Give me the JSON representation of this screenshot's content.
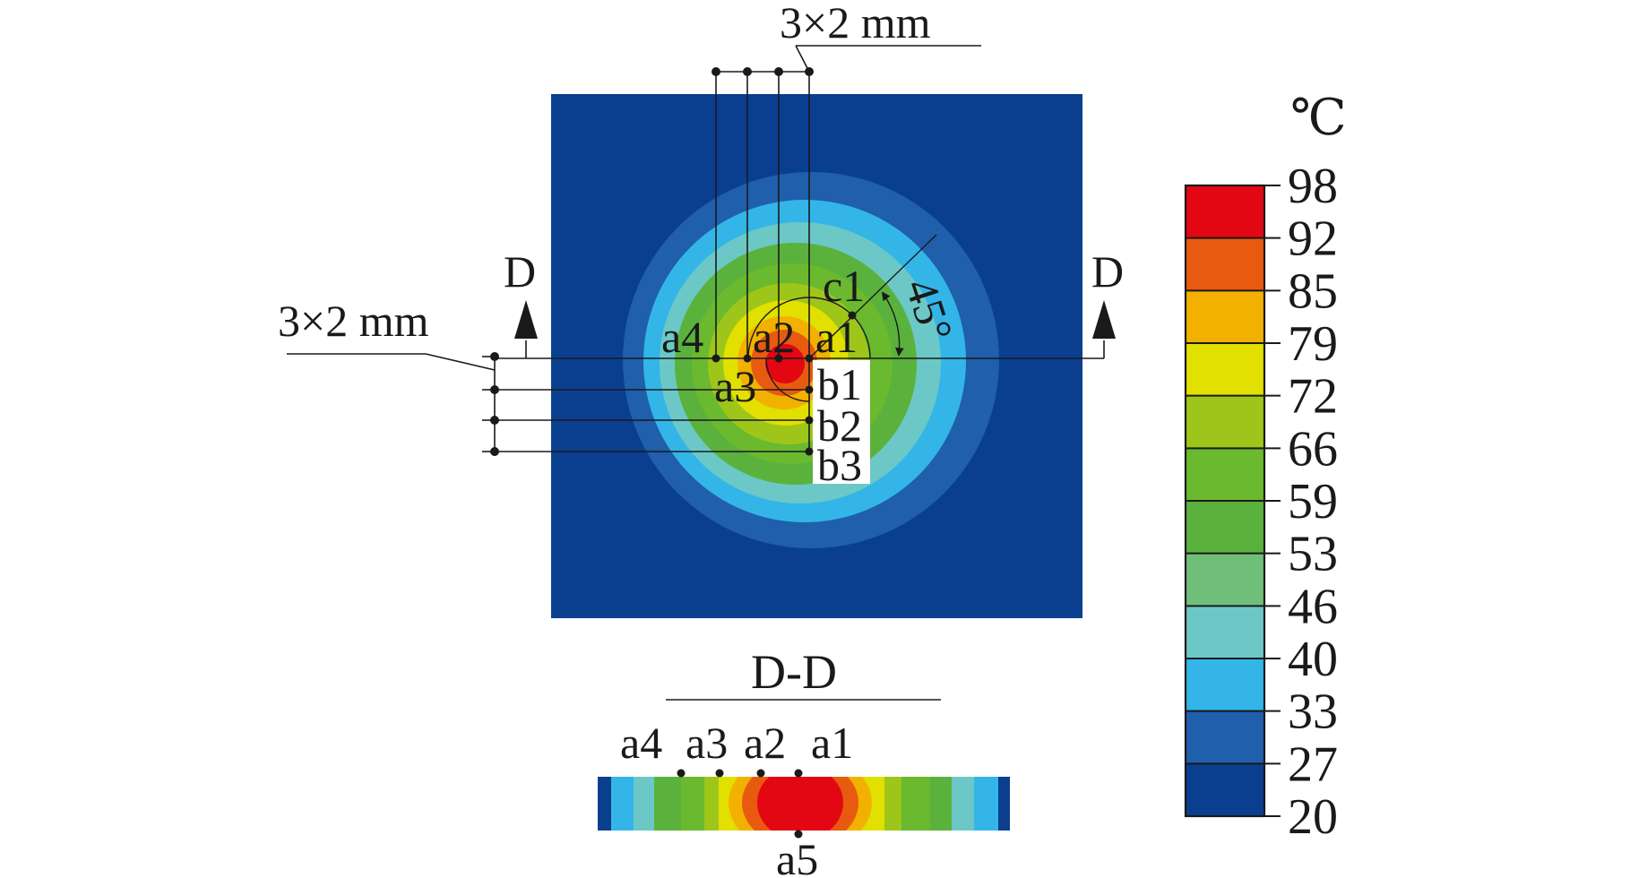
{
  "top_dim_label": "3×2 mm",
  "left_dim_label": "3×2 mm",
  "section_marker_left": "D",
  "section_marker_right": "D",
  "angle_label": "45°",
  "point_labels": {
    "a1": "a1",
    "a2": "a2",
    "a3": "a3",
    "a4": "a4",
    "b1": "b1",
    "b2": "b2",
    "b3": "b3",
    "c1": "c1"
  },
  "section_title": "D-D",
  "section_labels": {
    "a1": "a1",
    "a2": "a2",
    "a3": "a3",
    "a4": "a4",
    "a5": "a5"
  },
  "legend": {
    "unit": "℃",
    "ticks": [
      "98",
      "92",
      "85",
      "79",
      "72",
      "66",
      "59",
      "53",
      "46",
      "40",
      "33",
      "27",
      "20"
    ],
    "colors": [
      "#e30613",
      "#e85a0f",
      "#f2b100",
      "#e1e000",
      "#9ec61a",
      "#6ab92e",
      "#5ab23c",
      "#6fbf7a",
      "#6cc8c6",
      "#33b5e8",
      "#1f5fab",
      "#0a3f8f"
    ]
  }
}
